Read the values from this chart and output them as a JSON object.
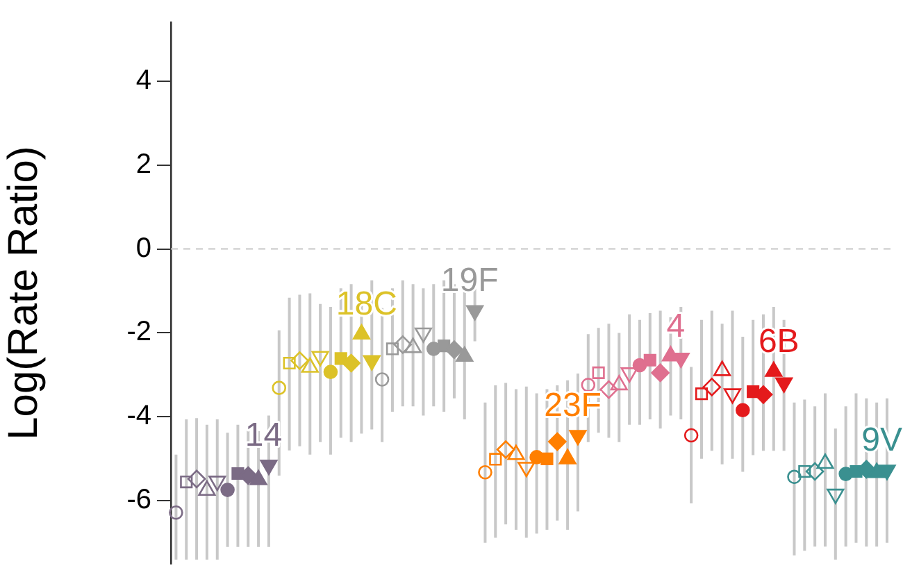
{
  "chart_data": {
    "type": "scatter",
    "ylabel": "Log(Rate Ratio)",
    "ylim": [
      -7.5,
      5.4
    ],
    "yticks": [
      -6,
      -4,
      -2,
      0,
      2,
      4
    ],
    "tick_labels": "y",
    "categories": [
      null,
      null,
      null,
      null,
      null,
      null,
      null,
      null,
      null,
      null,
      null,
      null,
      null,
      null,
      null,
      null,
      null,
      null,
      null,
      null,
      null,
      null,
      null,
      null,
      null,
      null,
      null,
      null,
      null,
      null,
      null,
      null,
      null,
      null,
      null,
      null,
      null,
      null,
      null,
      null,
      null,
      null,
      null,
      null,
      null,
      null,
      null,
      null,
      null,
      null,
      null,
      null,
      null,
      null,
      null,
      null,
      null,
      null,
      null,
      null,
      null,
      null,
      null,
      null,
      null,
      null,
      null,
      null,
      null,
      null
    ],
    "ref_lines": [
      {
        "axis": "y",
        "value": 0,
        "color": "#c8c8c8",
        "line_style": "dashed"
      }
    ],
    "series": [
      {
        "name": "14",
        "color": "#7b6b85",
        "marker": [
          "circle-open",
          "square-open",
          "diamond-open",
          "triangle-open",
          "triangle-down-open",
          "circle",
          "square",
          "diamond",
          "triangle",
          "triangle-down"
        ],
        "values": [
          -6.28,
          -5.55,
          -5.48,
          -5.75,
          -5.53,
          -5.74,
          -5.35,
          -5.4,
          -5.5,
          -5.15,
          null,
          null,
          null,
          null,
          null,
          null,
          null,
          null,
          null,
          null,
          null,
          null,
          null,
          null,
          null,
          null,
          null,
          null,
          null,
          null,
          null,
          null,
          null,
          null,
          null,
          null,
          null,
          null,
          null,
          null,
          null,
          null,
          null,
          null,
          null,
          null,
          null,
          null,
          null,
          null,
          null,
          null,
          null,
          null,
          null,
          null,
          null,
          null,
          null,
          null,
          null,
          null,
          null,
          null,
          null,
          null,
          null,
          null,
          null,
          null
        ],
        "errors": [
          [
            -7.4,
            -4.9
          ],
          [
            -7.4,
            -4.06
          ],
          [
            -7.4,
            -4.03
          ],
          [
            -7.4,
            -4.19
          ],
          [
            -7.4,
            -4.06
          ],
          [
            -7.1,
            -4.38
          ],
          [
            -7.1,
            -4.19
          ],
          [
            -7.1,
            -4.22
          ],
          [
            -7.1,
            -4.34
          ],
          [
            -7.1,
            -3.97
          ],
          null,
          null,
          null,
          null,
          null,
          null,
          null,
          null,
          null,
          null,
          null,
          null,
          null,
          null,
          null,
          null,
          null,
          null,
          null,
          null,
          null,
          null,
          null,
          null,
          null,
          null,
          null,
          null,
          null,
          null,
          null,
          null,
          null,
          null,
          null,
          null,
          null,
          null,
          null,
          null,
          null,
          null,
          null,
          null,
          null,
          null,
          null,
          null,
          null,
          null,
          null,
          null,
          null,
          null,
          null,
          null,
          null,
          null,
          null,
          null
        ]
      },
      {
        "name": "18C",
        "color": "#dcc228",
        "marker": [
          "circle-open",
          "square-open",
          "diamond-open",
          "triangle-open",
          "triangle-down-open",
          "circle",
          "square",
          "diamond",
          "triangle",
          "triangle-down"
        ],
        "values": [
          null,
          null,
          null,
          null,
          null,
          null,
          null,
          null,
          null,
          null,
          -3.31,
          -2.72,
          -2.66,
          -2.82,
          -2.56,
          -2.93,
          -2.61,
          -2.72,
          -2.03,
          -2.66,
          null,
          null,
          null,
          null,
          null,
          null,
          null,
          null,
          null,
          null,
          null,
          null,
          null,
          null,
          null,
          null,
          null,
          null,
          null,
          null,
          null,
          null,
          null,
          null,
          null,
          null,
          null,
          null,
          null,
          null,
          null,
          null,
          null,
          null,
          null,
          null,
          null,
          null,
          null,
          null,
          null,
          null,
          null,
          null,
          null,
          null,
          null,
          null,
          null,
          null
        ],
        "errors": [
          null,
          null,
          null,
          null,
          null,
          null,
          null,
          null,
          null,
          null,
          [
            -5.4,
            -1.94
          ],
          [
            -4.8,
            -1.16
          ],
          [
            -4.7,
            -1.09
          ],
          [
            -4.9,
            -1.06
          ],
          [
            -4.6,
            -1.31
          ],
          [
            -4.9,
            -1.38
          ],
          [
            -4.5,
            -0.94
          ],
          [
            -4.6,
            -0.84
          ],
          [
            -4.4,
            -1.31
          ],
          [
            -4.3,
            -0.75
          ],
          null,
          null,
          null,
          null,
          null,
          null,
          null,
          null,
          null,
          null,
          null,
          null,
          null,
          null,
          null,
          null,
          null,
          null,
          null,
          null,
          null,
          null,
          null,
          null,
          null,
          null,
          null,
          null,
          null,
          null,
          null,
          null,
          null,
          null,
          null,
          null,
          null,
          null,
          null,
          null,
          null,
          null,
          null,
          null,
          null,
          null,
          null,
          null,
          null,
          null
        ]
      },
      {
        "name": "19F",
        "color": "#999999",
        "marker": [
          "circle-open",
          "square-open",
          "diamond-open",
          "triangle-open",
          "triangle-down-open",
          "circle",
          "square",
          "diamond",
          "triangle",
          "triangle-down"
        ],
        "values": [
          null,
          null,
          null,
          null,
          null,
          null,
          null,
          null,
          null,
          null,
          null,
          null,
          null,
          null,
          null,
          null,
          null,
          null,
          null,
          null,
          -3.11,
          -2.38,
          -2.28,
          -2.35,
          -2.0,
          -2.38,
          -2.31,
          -2.4,
          -2.56,
          -1.47,
          null,
          null,
          null,
          null,
          null,
          null,
          null,
          null,
          null,
          null,
          null,
          null,
          null,
          null,
          null,
          null,
          null,
          null,
          null,
          null,
          null,
          null,
          null,
          null,
          null,
          null,
          null,
          null,
          null,
          null,
          null,
          null,
          null,
          null,
          null,
          null,
          null,
          null,
          null,
          null
        ],
        "errors": [
          null,
          null,
          null,
          null,
          null,
          null,
          null,
          null,
          null,
          null,
          null,
          null,
          null,
          null,
          null,
          null,
          null,
          null,
          null,
          null,
          [
            -4.6,
            -1.41
          ],
          [
            -3.88,
            -0.94
          ],
          [
            -3.75,
            -0.75
          ],
          [
            -3.75,
            -0.84
          ],
          [
            -3.97,
            -0.94
          ],
          [
            -3.75,
            -0.84
          ],
          [
            -3.88,
            -0.75
          ],
          [
            -3.56,
            -0.84
          ],
          [
            -4.06,
            -0.94
          ],
          [
            -2.2,
            -0.75
          ],
          null,
          null,
          null,
          null,
          null,
          null,
          null,
          null,
          null,
          null,
          null,
          null,
          null,
          null,
          null,
          null,
          null,
          null,
          null,
          null,
          null,
          null,
          null,
          null,
          null,
          null,
          null,
          null,
          null,
          null,
          null,
          null,
          null,
          null,
          null,
          null,
          null,
          null,
          null,
          null
        ]
      },
      {
        "name": "23F",
        "color": "#ff7f00",
        "marker": [
          "circle-open",
          "square-open",
          "diamond-open",
          "triangle-open",
          "triangle-down-open",
          "circle",
          "square",
          "diamond",
          "triangle",
          "triangle-down"
        ],
        "values": [
          null,
          null,
          null,
          null,
          null,
          null,
          null,
          null,
          null,
          null,
          null,
          null,
          null,
          null,
          null,
          null,
          null,
          null,
          null,
          null,
          null,
          null,
          null,
          null,
          null,
          null,
          null,
          null,
          null,
          null,
          -5.32,
          -5.01,
          -4.78,
          -4.9,
          -5.2,
          -4.96,
          -5.0,
          -4.59,
          -5.0,
          -4.44,
          null,
          null,
          null,
          null,
          null,
          null,
          null,
          null,
          null,
          null,
          null,
          null,
          null,
          null,
          null,
          null,
          null,
          null,
          null,
          null,
          null,
          null,
          null,
          null,
          null,
          null,
          null,
          null,
          null,
          null
        ],
        "errors": [
          null,
          null,
          null,
          null,
          null,
          null,
          null,
          null,
          null,
          null,
          null,
          null,
          null,
          null,
          null,
          null,
          null,
          null,
          null,
          null,
          null,
          null,
          null,
          null,
          null,
          null,
          null,
          null,
          null,
          null,
          [
            -7.0,
            -3.66
          ],
          [
            -6.88,
            -3.25
          ],
          [
            -6.56,
            -3.19
          ],
          [
            -6.69,
            -3.34
          ],
          [
            -6.88,
            -3.28
          ],
          [
            -6.78,
            -3.44
          ],
          [
            -6.69,
            -3.34
          ],
          [
            -6.47,
            -3.25
          ],
          [
            -6.69,
            -3.13
          ],
          [
            -6.25,
            -2.97
          ],
          null,
          null,
          null,
          null,
          null,
          null,
          null,
          null,
          null,
          null,
          null,
          null,
          null,
          null,
          null,
          null,
          null,
          null,
          null,
          null,
          null,
          null,
          null,
          null,
          null,
          null,
          null,
          null,
          null,
          null
        ]
      },
      {
        "name": "4",
        "color": "#df6f8f",
        "marker": [
          "circle-open",
          "square-open",
          "diamond-open",
          "triangle-open",
          "triangle-down-open",
          "circle",
          "square",
          "diamond",
          "triangle",
          "triangle-down"
        ],
        "values": [
          null,
          null,
          null,
          null,
          null,
          null,
          null,
          null,
          null,
          null,
          null,
          null,
          null,
          null,
          null,
          null,
          null,
          null,
          null,
          null,
          null,
          null,
          null,
          null,
          null,
          null,
          null,
          null,
          null,
          null,
          null,
          null,
          null,
          null,
          null,
          null,
          null,
          null,
          null,
          null,
          -3.24,
          -2.95,
          -3.35,
          -3.24,
          -2.95,
          -2.77,
          -2.65,
          -2.95,
          -2.55,
          -2.6,
          null,
          null,
          null,
          null,
          null,
          null,
          null,
          null,
          null,
          null,
          null,
          null,
          null,
          null,
          null,
          null,
          null,
          null,
          null,
          null
        ],
        "errors": [
          null,
          null,
          null,
          null,
          null,
          null,
          null,
          null,
          null,
          null,
          null,
          null,
          null,
          null,
          null,
          null,
          null,
          null,
          null,
          null,
          null,
          null,
          null,
          null,
          null,
          null,
          null,
          null,
          null,
          null,
          null,
          null,
          null,
          null,
          null,
          null,
          null,
          null,
          null,
          null,
          [
            -4.6,
            -2.03
          ],
          [
            -4.38,
            -1.88
          ],
          [
            -4.5,
            -1.78
          ],
          [
            -4.6,
            -2.0
          ],
          [
            -4.19,
            -1.56
          ],
          [
            -4.19,
            -1.69
          ],
          [
            -4.06,
            -1.53
          ],
          [
            -4.28,
            -1.47
          ],
          [
            -3.97,
            -1.63
          ],
          [
            -4.06,
            -1.38
          ],
          null,
          null,
          null,
          null,
          null,
          null,
          null,
          null,
          null,
          null,
          null,
          null,
          null,
          null,
          null,
          null,
          null,
          null,
          null,
          null
        ]
      },
      {
        "name": "6B",
        "color": "#e41a1c",
        "marker": [
          "circle-open",
          "square-open",
          "diamond-open",
          "triangle-open",
          "triangle-down-open",
          "circle",
          "square",
          "diamond",
          "triangle",
          "triangle-down"
        ],
        "values": [
          null,
          null,
          null,
          null,
          null,
          null,
          null,
          null,
          null,
          null,
          null,
          null,
          null,
          null,
          null,
          null,
          null,
          null,
          null,
          null,
          null,
          null,
          null,
          null,
          null,
          null,
          null,
          null,
          null,
          null,
          null,
          null,
          null,
          null,
          null,
          null,
          null,
          null,
          null,
          null,
          null,
          null,
          null,
          null,
          null,
          null,
          null,
          null,
          null,
          null,
          -4.44,
          -3.45,
          -3.29,
          -2.9,
          -3.45,
          -3.84,
          -3.4,
          -3.47,
          -2.92,
          -3.19,
          null,
          null,
          null,
          null,
          null,
          null,
          null,
          null,
          null,
          null
        ],
        "errors": [
          null,
          null,
          null,
          null,
          null,
          null,
          null,
          null,
          null,
          null,
          null,
          null,
          null,
          null,
          null,
          null,
          null,
          null,
          null,
          null,
          null,
          null,
          null,
          null,
          null,
          null,
          null,
          null,
          null,
          null,
          null,
          null,
          null,
          null,
          null,
          null,
          null,
          null,
          null,
          null,
          null,
          null,
          null,
          null,
          null,
          null,
          null,
          null,
          null,
          null,
          [
            -6.06,
            -2.81
          ],
          [
            -5.0,
            -1.69
          ],
          [
            -4.81,
            -1.47
          ],
          [
            -5.13,
            -1.78
          ],
          [
            -5.0,
            -1.47
          ],
          [
            -5.31,
            -2.09
          ],
          [
            -4.91,
            -1.69
          ],
          [
            -4.81,
            -1.56
          ],
          [
            -4.81,
            -1.38
          ],
          [
            -4.81,
            -1.69
          ],
          null,
          null,
          null,
          null,
          null,
          null,
          null,
          null,
          null,
          null
        ]
      },
      {
        "name": "9V",
        "color": "#3a9090",
        "marker": [
          "circle-open",
          "square-open",
          "diamond-open",
          "triangle-open",
          "triangle-down-open",
          "circle",
          "square",
          "diamond",
          "triangle",
          "triangle-down"
        ],
        "values": [
          null,
          null,
          null,
          null,
          null,
          null,
          null,
          null,
          null,
          null,
          null,
          null,
          null,
          null,
          null,
          null,
          null,
          null,
          null,
          null,
          null,
          null,
          null,
          null,
          null,
          null,
          null,
          null,
          null,
          null,
          null,
          null,
          null,
          null,
          null,
          null,
          null,
          null,
          null,
          null,
          null,
          null,
          null,
          null,
          null,
          null,
          null,
          null,
          null,
          null,
          null,
          null,
          null,
          null,
          null,
          null,
          null,
          null,
          null,
          null,
          -5.43,
          -5.3,
          -5.3,
          -5.11,
          -5.84,
          -5.36,
          -5.3,
          -5.25,
          -5.33,
          -5.27
        ],
        "errors": [
          null,
          null,
          null,
          null,
          null,
          null,
          null,
          null,
          null,
          null,
          null,
          null,
          null,
          null,
          null,
          null,
          null,
          null,
          null,
          null,
          null,
          null,
          null,
          null,
          null,
          null,
          null,
          null,
          null,
          null,
          null,
          null,
          null,
          null,
          null,
          null,
          null,
          null,
          null,
          null,
          null,
          null,
          null,
          null,
          null,
          null,
          null,
          null,
          null,
          null,
          null,
          null,
          null,
          null,
          null,
          null,
          null,
          null,
          null,
          null,
          [
            -7.3,
            -3.66
          ],
          [
            -7.19,
            -3.59
          ],
          [
            -7.09,
            -3.75
          ],
          [
            -7.09,
            -3.44
          ],
          [
            -7.4,
            -4.28
          ],
          [
            -7.09,
            -3.75
          ],
          [
            -7.0,
            -3.44
          ],
          [
            -7.09,
            -3.56
          ],
          [
            -7.09,
            -3.66
          ],
          [
            -7.0,
            -3.56
          ]
        ]
      }
    ]
  }
}
